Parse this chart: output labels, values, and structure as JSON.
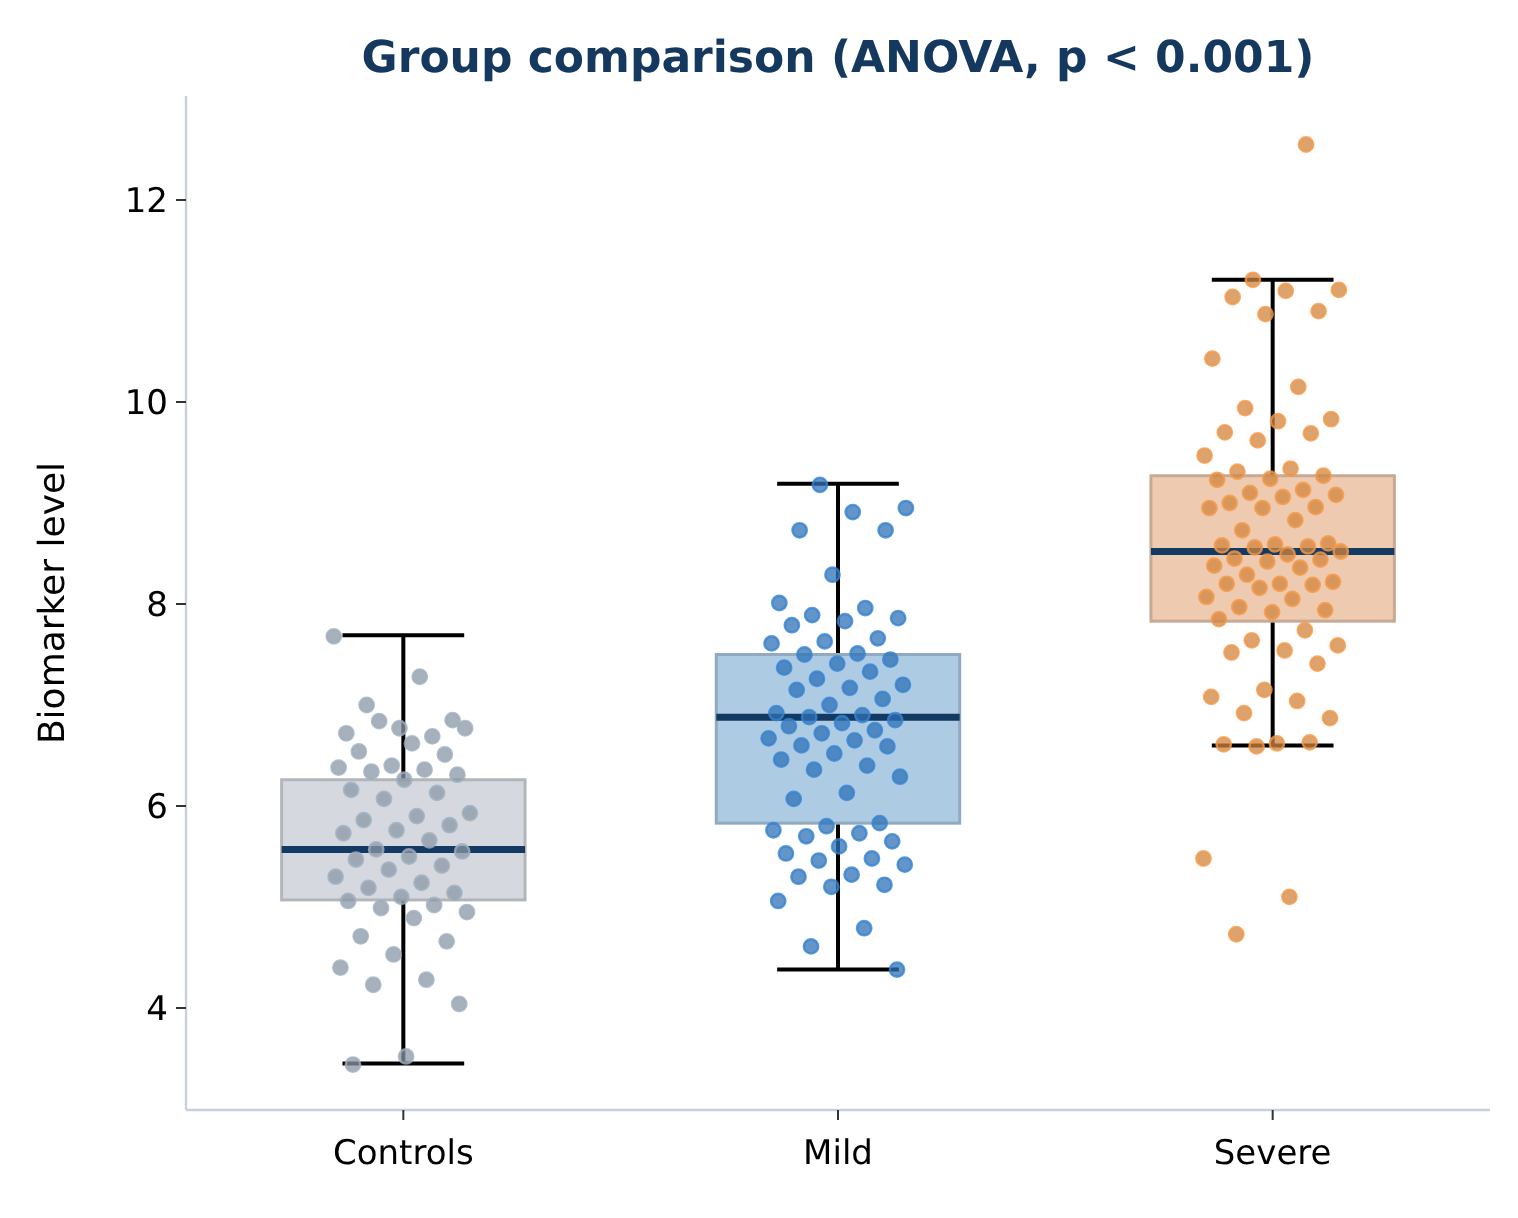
{
  "chart_data": {
    "type": "box",
    "title": "Group comparison (ANOVA, p < 0.001)",
    "ylabel": "Biomarker level",
    "categories": [
      "Controls",
      "Mild",
      "Severe"
    ],
    "colors": [
      "#d5d9df",
      "#aecbe4",
      "#eecbb0"
    ],
    "boxes": [
      {
        "low": 3.45,
        "q1": 5.07,
        "median": 5.57,
        "q3": 6.26,
        "high": 7.69
      },
      {
        "low": 4.38,
        "q1": 5.83,
        "median": 6.88,
        "q3": 7.5,
        "high": 9.19
      },
      {
        "low": 6.6,
        "q1": 7.83,
        "median": 8.52,
        "q3": 9.27,
        "high": 11.21
      }
    ],
    "ylim": [
      2.99,
      13.03
    ],
    "yticks": [
      4,
      6,
      8,
      10,
      12
    ],
    "marker": "circle",
    "series": [
      {
        "type": "scatter",
        "color": "#8a97a5",
        "x": [
          "Controls",
          "Controls",
          "Controls",
          "Controls",
          "Controls",
          "Controls",
          "Controls",
          "Controls",
          "Controls",
          "Controls",
          "Controls",
          "Controls",
          "Controls",
          "Controls",
          "Controls",
          "Controls",
          "Controls",
          "Controls",
          "Controls",
          "Controls",
          "Controls",
          "Controls",
          "Controls",
          "Controls",
          "Controls",
          "Controls",
          "Controls",
          "Controls",
          "Controls",
          "Controls",
          "Controls",
          "Controls",
          "Controls",
          "Controls",
          "Controls",
          "Controls",
          "Controls",
          "Controls",
          "Controls",
          "Controls",
          "Controls",
          "Controls",
          "Controls",
          "Controls",
          "Controls",
          "Controls",
          "Controls",
          "Controls",
          "Controls",
          "Controls",
          "Controls",
          "Controls",
          "Controls"
        ],
        "values": [
          7.68,
          7.28,
          7.0,
          6.85,
          6.77,
          6.72,
          6.69,
          6.84,
          6.77,
          6.62,
          6.54,
          6.51,
          6.4,
          6.38,
          6.36,
          6.34,
          6.31,
          6.26,
          6.16,
          6.13,
          6.07,
          5.93,
          5.9,
          5.86,
          5.81,
          5.76,
          5.73,
          5.66,
          5.57,
          5.55,
          5.5,
          5.47,
          5.41,
          5.37,
          5.3,
          5.24,
          5.19,
          5.14,
          5.1,
          5.06,
          5.02,
          4.99,
          4.95,
          4.89,
          4.71,
          4.66,
          4.53,
          4.4,
          4.28,
          4.23,
          4.04,
          3.52,
          3.44
        ]
      },
      {
        "type": "scatter",
        "color": "#2f72b5",
        "x": [
          "Mild",
          "Mild",
          "Mild",
          "Mild",
          "Mild",
          "Mild",
          "Mild",
          "Mild",
          "Mild",
          "Mild",
          "Mild",
          "Mild",
          "Mild",
          "Mild",
          "Mild",
          "Mild",
          "Mild",
          "Mild",
          "Mild",
          "Mild",
          "Mild",
          "Mild",
          "Mild",
          "Mild",
          "Mild",
          "Mild",
          "Mild",
          "Mild",
          "Mild",
          "Mild",
          "Mild",
          "Mild",
          "Mild",
          "Mild",
          "Mild",
          "Mild",
          "Mild",
          "Mild",
          "Mild",
          "Mild",
          "Mild",
          "Mild",
          "Mild",
          "Mild",
          "Mild",
          "Mild",
          "Mild",
          "Mild",
          "Mild",
          "Mild",
          "Mild",
          "Mild",
          "Mild",
          "Mild",
          "Mild",
          "Mild",
          "Mild",
          "Mild",
          "Mild",
          "Mild",
          "Mild",
          "Mild",
          "Mild",
          "Mild",
          "Mild"
        ],
        "values": [
          9.18,
          8.95,
          8.91,
          8.73,
          8.73,
          8.29,
          8.01,
          7.96,
          7.89,
          7.86,
          7.83,
          7.79,
          7.66,
          7.63,
          7.61,
          7.51,
          7.5,
          7.45,
          7.41,
          7.37,
          7.33,
          7.26,
          7.2,
          7.17,
          7.15,
          7.06,
          7.0,
          6.92,
          6.9,
          6.88,
          6.85,
          6.82,
          6.79,
          6.75,
          6.72,
          6.67,
          6.65,
          6.6,
          6.59,
          6.52,
          6.46,
          6.4,
          6.36,
          6.29,
          6.13,
          6.07,
          5.83,
          5.8,
          5.76,
          5.73,
          5.7,
          5.65,
          5.6,
          5.53,
          5.48,
          5.46,
          5.42,
          5.32,
          5.3,
          5.22,
          5.2,
          5.06,
          4.79,
          4.61,
          4.38
        ]
      },
      {
        "type": "scatter",
        "color": "#d2843f",
        "x": [
          "Severe",
          "Severe",
          "Severe",
          "Severe",
          "Severe",
          "Severe",
          "Severe",
          "Severe",
          "Severe",
          "Severe",
          "Severe",
          "Severe",
          "Severe",
          "Severe",
          "Severe",
          "Severe",
          "Severe",
          "Severe",
          "Severe",
          "Severe",
          "Severe",
          "Severe",
          "Severe",
          "Severe",
          "Severe",
          "Severe",
          "Severe",
          "Severe",
          "Severe",
          "Severe",
          "Severe",
          "Severe",
          "Severe",
          "Severe",
          "Severe",
          "Severe",
          "Severe",
          "Severe",
          "Severe",
          "Severe",
          "Severe",
          "Severe",
          "Severe",
          "Severe",
          "Severe",
          "Severe",
          "Severe",
          "Severe",
          "Severe",
          "Severe",
          "Severe",
          "Severe",
          "Severe",
          "Severe",
          "Severe",
          "Severe",
          "Severe",
          "Severe",
          "Severe",
          "Severe",
          "Severe",
          "Severe",
          "Severe",
          "Severe",
          "Severe",
          "Severe",
          "Severe",
          "Severe",
          "Severe",
          "Severe",
          "Severe",
          "Severe",
          "Severe"
        ],
        "values": [
          12.55,
          11.21,
          11.11,
          11.1,
          11.04,
          10.9,
          10.87,
          10.43,
          10.15,
          9.94,
          9.83,
          9.81,
          9.7,
          9.69,
          9.62,
          9.47,
          9.34,
          9.31,
          9.27,
          9.24,
          9.23,
          9.13,
          9.1,
          9.08,
          9.06,
          9.0,
          8.96,
          8.95,
          8.95,
          8.83,
          8.73,
          8.6,
          8.59,
          8.58,
          8.57,
          8.56,
          8.52,
          8.49,
          8.45,
          8.44,
          8.42,
          8.38,
          8.36,
          8.29,
          8.22,
          8.2,
          8.2,
          8.19,
          8.16,
          8.07,
          8.05,
          7.97,
          7.94,
          7.92,
          7.85,
          7.74,
          7.64,
          7.59,
          7.54,
          7.52,
          7.41,
          7.15,
          7.08,
          7.04,
          6.92,
          6.87,
          6.62,
          6.61,
          6.63,
          6.59,
          5.48,
          5.1,
          4.73
        ]
      }
    ]
  }
}
